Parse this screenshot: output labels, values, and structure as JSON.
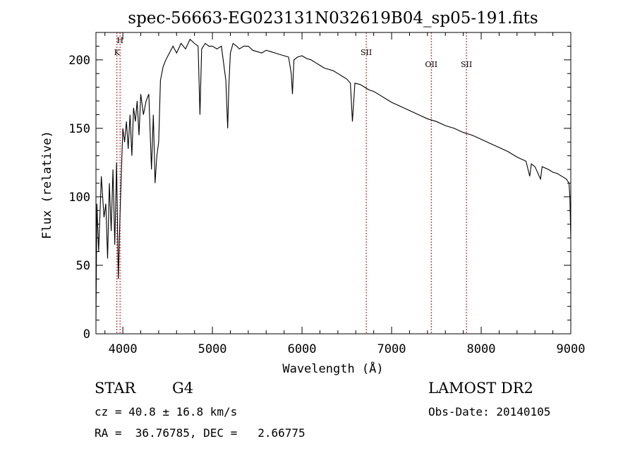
{
  "chart_data": {
    "type": "line",
    "title": "spec-56663-EG023131N032619B04_sp05-191.fits",
    "xlabel": "Wavelength (Å)",
    "ylabel": "Flux (relative)",
    "xlim": [
      3700,
      9000
    ],
    "ylim": [
      0,
      220
    ],
    "x_ticks": [
      4000,
      5000,
      6000,
      7000,
      8000,
      9000
    ],
    "y_ticks": [
      0,
      50,
      100,
      150,
      200
    ],
    "grid": false,
    "series": [
      {
        "x": [
          3700,
          3710,
          3730,
          3760,
          3790,
          3810,
          3830,
          3850,
          3870,
          3890,
          3910,
          3930,
          3950,
          3970,
          3990,
          4000,
          4020,
          4040,
          4060,
          4080,
          4101,
          4120,
          4140,
          4160,
          4180,
          4200,
          4230,
          4260,
          4290,
          4320,
          4340,
          4360,
          4380,
          4400,
          4420,
          4450,
          4480,
          4520,
          4560,
          4600,
          4650,
          4700,
          4750,
          4800,
          4840,
          4861,
          4880,
          4920,
          4960,
          5000,
          5050,
          5100,
          5150,
          5170,
          5183,
          5200,
          5230,
          5270,
          5300,
          5350,
          5400,
          5450,
          5500,
          5550,
          5600,
          5650,
          5700,
          5750,
          5800,
          5850,
          5880,
          5893,
          5910,
          5950,
          6000,
          6050,
          6100,
          6150,
          6200,
          6250,
          6300,
          6350,
          6400,
          6450,
          6500,
          6540,
          6563,
          6590,
          6650,
          6700,
          6750,
          6800,
          6850,
          6900,
          6950,
          7000,
          7100,
          7200,
          7300,
          7400,
          7500,
          7600,
          7700,
          7800,
          7900,
          8000,
          8100,
          8200,
          8300,
          8400,
          8500,
          8542,
          8560,
          8600,
          8662,
          8680,
          8750,
          8800,
          8850,
          8900,
          8950,
          8980,
          8990,
          9000
        ],
        "y": [
          10,
          95,
          60,
          115,
          85,
          95,
          55,
          110,
          75,
          120,
          65,
          125,
          40,
          90,
          130,
          150,
          140,
          155,
          135,
          160,
          130,
          165,
          155,
          170,
          145,
          175,
          160,
          170,
          175,
          120,
          160,
          110,
          130,
          140,
          185,
          195,
          200,
          205,
          210,
          205,
          212,
          208,
          215,
          212,
          210,
          160,
          208,
          212,
          210,
          210,
          208,
          210,
          185,
          150,
          180,
          205,
          212,
          210,
          208,
          210,
          210,
          207,
          206,
          205,
          207,
          206,
          205,
          204,
          203,
          202,
          190,
          175,
          200,
          202,
          203,
          201,
          200,
          198,
          196,
          194,
          193,
          192,
          190,
          188,
          186,
          183,
          155,
          183,
          182,
          180,
          178,
          177,
          175,
          173,
          171,
          169,
          166,
          163,
          160,
          157,
          155,
          152,
          150,
          147,
          145,
          142,
          139,
          136,
          133,
          129,
          126,
          115,
          124,
          122,
          113,
          122,
          120,
          118,
          117,
          115,
          113,
          110,
          100,
          70
        ]
      }
    ],
    "vlines": [
      {
        "x": 3934,
        "label": "K"
      },
      {
        "x": 3969,
        "label": "H"
      },
      {
        "x": 6717,
        "label": "SII"
      },
      {
        "x": 7443,
        "label": "OII"
      },
      {
        "x": 7835,
        "label": "SII"
      }
    ],
    "line_color": "#000000",
    "vline_color": "#cc0000"
  },
  "info": {
    "class_label": "STAR",
    "subclass": "G4",
    "survey": "LAMOST DR2",
    "cz": "cz = 40.8 ± 16.8 km/s",
    "obs_date": "Obs-Date: 20140105",
    "radec": "RA =  36.76785, DEC =   2.66775"
  }
}
